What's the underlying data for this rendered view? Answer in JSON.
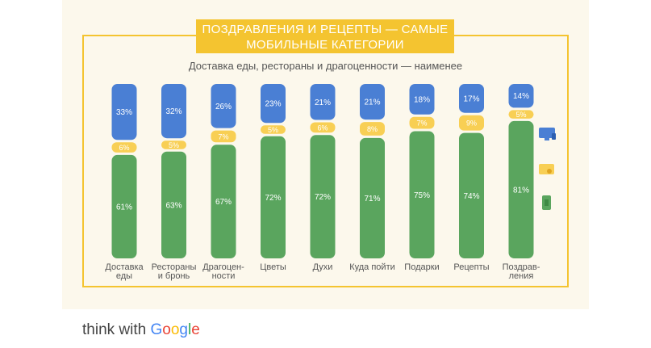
{
  "title_line1": "ПОЗДРАВЛЕНИЯ И РЕЦЕПТЫ — САМЫЕ",
  "title_line2": "МОБИЛЬНЫЕ КАТЕГОРИИ",
  "subtitle": "Доставка еды, рестораны и драгоценности — наименее",
  "footer": {
    "prefix": "think with",
    "brand_letters": [
      "G",
      "o",
      "o",
      "g",
      "l",
      "e"
    ]
  },
  "colors": {
    "desktop": "#4a7fd4",
    "tablet": "#f8cf54",
    "mobile": "#5aa55e",
    "frame": "#f4c430"
  },
  "legend_icons": [
    "desktop-icon",
    "tablet-icon",
    "smartphone-icon"
  ],
  "chart_data": {
    "type": "bar",
    "stacked": true,
    "categories": [
      [
        "Доставка",
        "еды"
      ],
      [
        "Рестораны",
        "и бронь"
      ],
      [
        "Драгоцен-",
        "ности"
      ],
      [
        "Цветы"
      ],
      [
        "Духи"
      ],
      [
        "Куда пойти"
      ],
      [
        "Подарки"
      ],
      [
        "Рецепты"
      ],
      [
        "Поздрав-",
        "ления"
      ]
    ],
    "series": [
      {
        "key": "desktop",
        "values": [
          33,
          32,
          26,
          23,
          21,
          21,
          18,
          17,
          14
        ]
      },
      {
        "key": "tablet",
        "values": [
          6,
          5,
          7,
          5,
          6,
          8,
          7,
          9,
          5
        ]
      },
      {
        "key": "mobile",
        "values": [
          61,
          63,
          67,
          72,
          72,
          71,
          75,
          74,
          81
        ]
      }
    ],
    "ylim": [
      0,
      100
    ]
  }
}
